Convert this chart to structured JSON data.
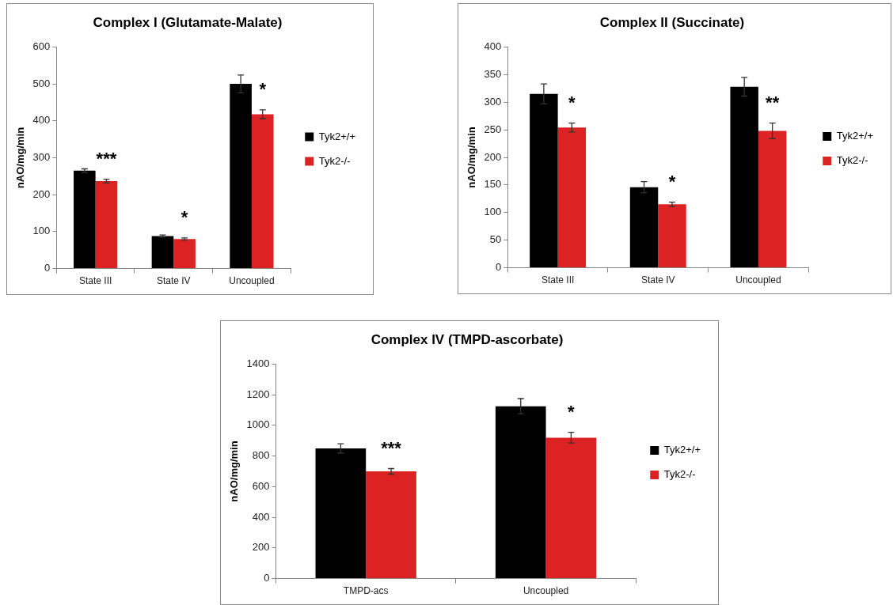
{
  "chart_data": [
    {
      "type": "bar",
      "title": "Complex I (Glutamate-Malate)",
      "ylabel": "nAO/mg/min",
      "categories": [
        "State III",
        "State IV",
        "Uncoupled"
      ],
      "series": [
        {
          "name": "Tyk2+/+",
          "color": "#000000",
          "values": [
            265,
            88,
            500
          ],
          "errors": [
            5,
            3,
            24
          ]
        },
        {
          "name": "Tyk2-/-",
          "color": "#dc2222",
          "values": [
            237,
            80,
            418
          ],
          "errors": [
            5,
            3,
            12
          ]
        }
      ],
      "ylim": [
        0,
        600
      ],
      "yticks": [
        0,
        100,
        200,
        300,
        400,
        500,
        600
      ],
      "grid": false,
      "legend": "right",
      "annotations": [
        {
          "text": "***",
          "x": "State III",
          "y": 237
        },
        {
          "text": "*",
          "x": "State IV",
          "y": 80
        },
        {
          "text": "*",
          "x": "Uncoupled",
          "y": 418
        }
      ]
    },
    {
      "type": "bar",
      "title": "Complex II (Succinate)",
      "ylabel": "nAO/mg/min",
      "categories": [
        "State III",
        "State IV",
        "Uncoupled"
      ],
      "series": [
        {
          "name": "Tyk2+/+",
          "color": "#000000",
          "values": [
            315,
            146,
            328
          ],
          "errors": [
            18,
            10,
            17
          ]
        },
        {
          "name": "Tyk2-/-",
          "color": "#dc2222",
          "values": [
            254,
            115,
            248
          ],
          "errors": [
            8,
            4,
            14
          ]
        }
      ],
      "ylim": [
        0,
        400
      ],
      "yticks": [
        0,
        50,
        100,
        150,
        200,
        250,
        300,
        350,
        400
      ],
      "grid": false,
      "legend": "right",
      "annotations": [
        {
          "text": "*",
          "x": "State III",
          "y": 254
        },
        {
          "text": "*",
          "x": "State IV",
          "y": 115
        },
        {
          "text": "**",
          "x": "Uncoupled",
          "y": 248
        }
      ]
    },
    {
      "type": "bar",
      "title": "Complex IV (TMPD-ascorbate)",
      "ylabel": "nAO/mg/min",
      "categories": [
        "TMPD-acs",
        "Uncoupled"
      ],
      "series": [
        {
          "name": "Tyk2+/+",
          "color": "#000000",
          "values": [
            850,
            1125
          ],
          "errors": [
            30,
            50
          ]
        },
        {
          "name": "Tyk2-/-",
          "color": "#dc2222",
          "values": [
            700,
            920
          ],
          "errors": [
            18,
            35
          ]
        }
      ],
      "ylim": [
        0,
        1400
      ],
      "yticks": [
        0,
        200,
        400,
        600,
        800,
        1000,
        1200,
        1400
      ],
      "grid": false,
      "legend": "right",
      "annotations": [
        {
          "text": "***",
          "x": "TMPD-acs",
          "y": 700
        },
        {
          "text": "*",
          "x": "Uncoupled",
          "y": 920
        }
      ]
    }
  ]
}
